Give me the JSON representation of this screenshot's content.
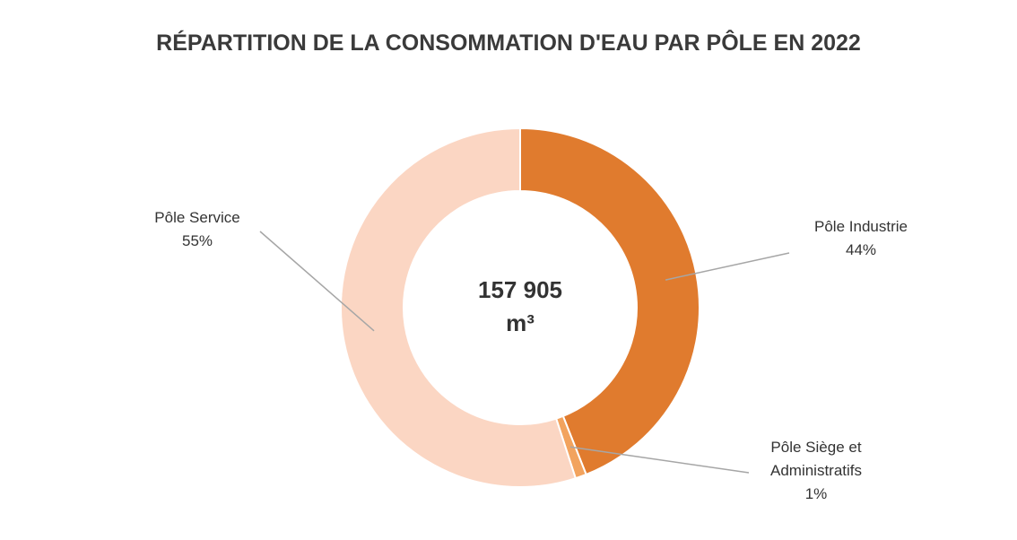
{
  "chart_data": {
    "type": "donut",
    "title": "RÉPARTITION DE LA CONSOMMATION D'EAU PAR PÔLE EN 2022",
    "center_label": [
      "157 905",
      "m³"
    ],
    "categories": [
      "Pôle Industrie",
      "Pôle Siège et Administratifs",
      "Pôle Service"
    ],
    "values": [
      44,
      1,
      55
    ],
    "value_labels": [
      "44%",
      "1%",
      "55%"
    ],
    "colors": [
      "#e07b2e",
      "#f2a35e",
      "#fbd6c3"
    ]
  }
}
